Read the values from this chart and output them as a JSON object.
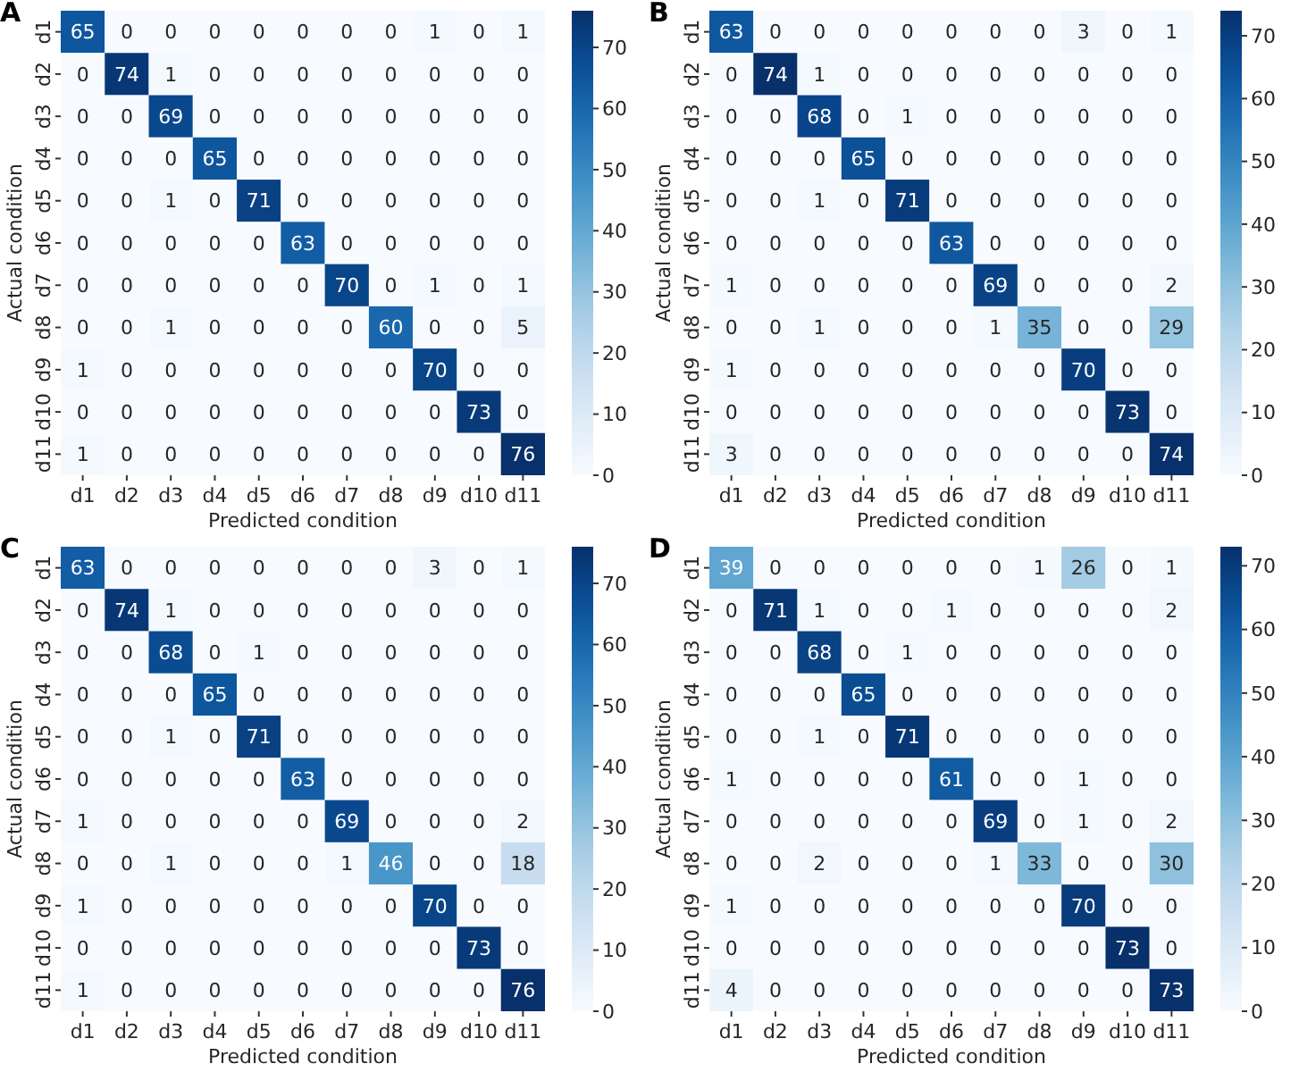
{
  "chart_data": [
    {
      "type": "heatmap",
      "title": "A",
      "xlabel": "Predicted condition",
      "ylabel": "Actual condition",
      "categories": [
        "d1",
        "d2",
        "d3",
        "d4",
        "d5",
        "d6",
        "d7",
        "d8",
        "d9",
        "d10",
        "d11"
      ],
      "y_categories": [
        "d1",
        "d2",
        "d3",
        "d4",
        "d5",
        "d6",
        "d7",
        "d8",
        "d9",
        "d10",
        "d11"
      ],
      "cells": [
        [
          65,
          0,
          0,
          0,
          0,
          0,
          0,
          0,
          1,
          0,
          1
        ],
        [
          0,
          74,
          1,
          0,
          0,
          0,
          0,
          0,
          0,
          0,
          0
        ],
        [
          0,
          0,
          69,
          0,
          0,
          0,
          0,
          0,
          0,
          0,
          0
        ],
        [
          0,
          0,
          0,
          65,
          0,
          0,
          0,
          0,
          0,
          0,
          0
        ],
        [
          0,
          0,
          1,
          0,
          71,
          0,
          0,
          0,
          0,
          0,
          0
        ],
        [
          0,
          0,
          0,
          0,
          0,
          63,
          0,
          0,
          0,
          0,
          0
        ],
        [
          0,
          0,
          0,
          0,
          0,
          0,
          70,
          0,
          1,
          0,
          1
        ],
        [
          0,
          0,
          1,
          0,
          0,
          0,
          0,
          60,
          0,
          0,
          5
        ],
        [
          1,
          0,
          0,
          0,
          0,
          0,
          0,
          0,
          70,
          0,
          0
        ],
        [
          0,
          0,
          0,
          0,
          0,
          0,
          0,
          0,
          0,
          73,
          0
        ],
        [
          1,
          0,
          0,
          0,
          0,
          0,
          0,
          0,
          0,
          0,
          76
        ]
      ],
      "clim": [
        0,
        76
      ],
      "cticks": [
        0,
        10,
        20,
        30,
        40,
        50,
        60,
        70
      ],
      "data_labels": true
    },
    {
      "type": "heatmap",
      "title": "B",
      "xlabel": "Predicted condition",
      "ylabel": "Actual condition",
      "categories": [
        "d1",
        "d2",
        "d3",
        "d4",
        "d5",
        "d6",
        "d7",
        "d8",
        "d9",
        "d10",
        "d11"
      ],
      "y_categories": [
        "d1",
        "d2",
        "d3",
        "d4",
        "d5",
        "d6",
        "d7",
        "d8",
        "d9",
        "d10",
        "d11"
      ],
      "cells": [
        [
          63,
          0,
          0,
          0,
          0,
          0,
          0,
          0,
          3,
          0,
          1
        ],
        [
          0,
          74,
          1,
          0,
          0,
          0,
          0,
          0,
          0,
          0,
          0
        ],
        [
          0,
          0,
          68,
          0,
          1,
          0,
          0,
          0,
          0,
          0,
          0
        ],
        [
          0,
          0,
          0,
          65,
          0,
          0,
          0,
          0,
          0,
          0,
          0
        ],
        [
          0,
          0,
          1,
          0,
          71,
          0,
          0,
          0,
          0,
          0,
          0
        ],
        [
          0,
          0,
          0,
          0,
          0,
          63,
          0,
          0,
          0,
          0,
          0
        ],
        [
          1,
          0,
          0,
          0,
          0,
          0,
          69,
          0,
          0,
          0,
          2
        ],
        [
          0,
          0,
          1,
          0,
          0,
          0,
          1,
          35,
          0,
          0,
          29
        ],
        [
          1,
          0,
          0,
          0,
          0,
          0,
          0,
          0,
          70,
          0,
          0
        ],
        [
          0,
          0,
          0,
          0,
          0,
          0,
          0,
          0,
          0,
          73,
          0
        ],
        [
          3,
          0,
          0,
          0,
          0,
          0,
          0,
          0,
          0,
          0,
          74
        ]
      ],
      "clim": [
        0,
        74
      ],
      "cticks": [
        0,
        10,
        20,
        30,
        40,
        50,
        60,
        70
      ],
      "data_labels": true
    },
    {
      "type": "heatmap",
      "title": "C",
      "xlabel": "Predicted condition",
      "ylabel": "Actual condition",
      "categories": [
        "d1",
        "d2",
        "d3",
        "d4",
        "d5",
        "d6",
        "d7",
        "d8",
        "d9",
        "d10",
        "d11"
      ],
      "y_categories": [
        "d1",
        "d2",
        "d3",
        "d4",
        "d5",
        "d6",
        "d7",
        "d8",
        "d9",
        "d10",
        "d11"
      ],
      "cells": [
        [
          63,
          0,
          0,
          0,
          0,
          0,
          0,
          0,
          3,
          0,
          1
        ],
        [
          0,
          74,
          1,
          0,
          0,
          0,
          0,
          0,
          0,
          0,
          0
        ],
        [
          0,
          0,
          68,
          0,
          1,
          0,
          0,
          0,
          0,
          0,
          0
        ],
        [
          0,
          0,
          0,
          65,
          0,
          0,
          0,
          0,
          0,
          0,
          0
        ],
        [
          0,
          0,
          1,
          0,
          71,
          0,
          0,
          0,
          0,
          0,
          0
        ],
        [
          0,
          0,
          0,
          0,
          0,
          63,
          0,
          0,
          0,
          0,
          0
        ],
        [
          1,
          0,
          0,
          0,
          0,
          0,
          69,
          0,
          0,
          0,
          2
        ],
        [
          0,
          0,
          1,
          0,
          0,
          0,
          1,
          46,
          0,
          0,
          18
        ],
        [
          1,
          0,
          0,
          0,
          0,
          0,
          0,
          0,
          70,
          0,
          0
        ],
        [
          0,
          0,
          0,
          0,
          0,
          0,
          0,
          0,
          0,
          73,
          0
        ],
        [
          1,
          0,
          0,
          0,
          0,
          0,
          0,
          0,
          0,
          0,
          76
        ]
      ],
      "clim": [
        0,
        76
      ],
      "cticks": [
        0,
        10,
        20,
        30,
        40,
        50,
        60,
        70
      ],
      "data_labels": true
    },
    {
      "type": "heatmap",
      "title": "D",
      "xlabel": "Predicted condition",
      "ylabel": "Actual condition",
      "categories": [
        "d1",
        "d2",
        "d3",
        "d4",
        "d5",
        "d6",
        "d7",
        "d8",
        "d9",
        "d10",
        "d11"
      ],
      "y_categories": [
        "d1",
        "d2",
        "d3",
        "d4",
        "d5",
        "d6",
        "d7",
        "d8",
        "d9",
        "d10",
        "d11"
      ],
      "cells": [
        [
          39,
          0,
          0,
          0,
          0,
          0,
          0,
          1,
          26,
          0,
          1
        ],
        [
          0,
          71,
          1,
          0,
          0,
          1,
          0,
          0,
          0,
          0,
          2
        ],
        [
          0,
          0,
          68,
          0,
          1,
          0,
          0,
          0,
          0,
          0,
          0
        ],
        [
          0,
          0,
          0,
          65,
          0,
          0,
          0,
          0,
          0,
          0,
          0
        ],
        [
          0,
          0,
          1,
          0,
          71,
          0,
          0,
          0,
          0,
          0,
          0
        ],
        [
          1,
          0,
          0,
          0,
          0,
          61,
          0,
          0,
          1,
          0,
          0
        ],
        [
          0,
          0,
          0,
          0,
          0,
          0,
          69,
          0,
          1,
          0,
          2
        ],
        [
          0,
          0,
          2,
          0,
          0,
          0,
          1,
          33,
          0,
          0,
          30
        ],
        [
          1,
          0,
          0,
          0,
          0,
          0,
          0,
          0,
          70,
          0,
          0
        ],
        [
          0,
          0,
          0,
          0,
          0,
          0,
          0,
          0,
          0,
          73,
          0
        ],
        [
          4,
          0,
          0,
          0,
          0,
          0,
          0,
          0,
          0,
          0,
          73
        ]
      ],
      "clim": [
        0,
        73
      ],
      "cticks": [
        0,
        10,
        20,
        30,
        40,
        50,
        60,
        70
      ],
      "data_labels": true
    }
  ]
}
